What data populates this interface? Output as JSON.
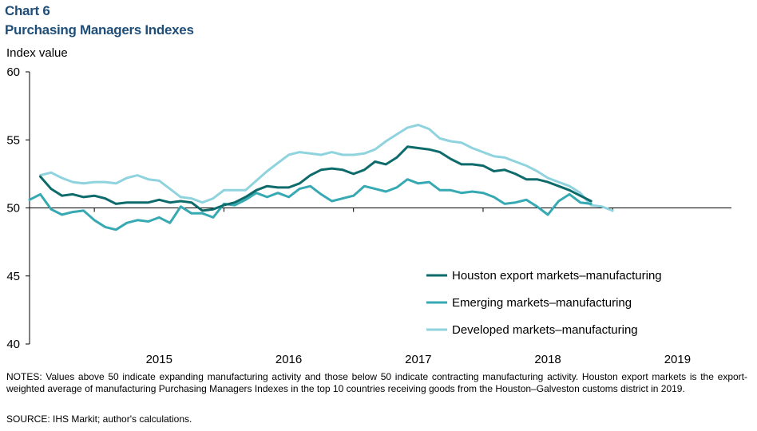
{
  "header": {
    "chart_label": "Chart 6",
    "title": "Purchasing Managers Indexes",
    "y_unit": "Index value"
  },
  "notes": "NOTES: Values above 50 indicate expanding manufacturing activity and those below 50 indicate contracting manufacturing activity. Houston export markets is the export-weighted average of manufacturing Purchasing Managers Indexes in the top 10 countries receiving goods from the Houston–Galveston customs district in 2019.",
  "source": "SOURCE: IHS Markit; author's calculations.",
  "chart_data": {
    "type": "line",
    "title": "Purchasing Managers Indexes",
    "ylabel": "Index value",
    "xlabel": "",
    "ylim": [
      40,
      60
    ],
    "yticks": [
      40,
      45,
      50,
      55,
      60
    ],
    "xlim": [
      "2014-07",
      "2019-12"
    ],
    "x_tick_labels": [
      "2015",
      "2016",
      "2017",
      "2018",
      "2019"
    ],
    "x_label_dates": [
      "2015-07",
      "2016-07",
      "2017-07",
      "2018-07",
      "2019-07"
    ],
    "x_boundary_dates": [
      "2015-01",
      "2016-01",
      "2017-01",
      "2018-01",
      "2019-01",
      "2020-01"
    ],
    "baseline_y": 50,
    "grid": false,
    "legend_position": "bottom-right",
    "series": [
      {
        "name": "Houston export markets–manufacturing",
        "color": "#0e6b6b",
        "x": [
          "2014-08",
          "2014-09",
          "2014-10",
          "2014-11",
          "2014-12",
          "2015-01",
          "2015-02",
          "2015-03",
          "2015-04",
          "2015-05",
          "2015-06",
          "2015-07",
          "2015-08",
          "2015-09",
          "2015-10",
          "2015-11",
          "2015-12",
          "2016-01",
          "2016-02",
          "2016-03",
          "2016-04",
          "2016-05",
          "2016-06",
          "2016-07",
          "2016-08",
          "2016-09",
          "2016-10",
          "2016-11",
          "2016-12",
          "2017-01",
          "2017-02",
          "2017-03",
          "2017-04",
          "2017-05",
          "2017-06",
          "2017-07",
          "2017-08",
          "2017-09",
          "2017-10",
          "2017-11",
          "2017-12",
          "2018-01",
          "2018-02",
          "2018-03",
          "2018-04",
          "2018-05",
          "2018-06",
          "2018-07",
          "2018-08",
          "2018-09",
          "2018-10",
          "2018-11",
          "2018-12"
        ],
        "y": [
          52.3,
          51.4,
          50.9,
          51.0,
          50.8,
          50.9,
          50.7,
          50.3,
          50.4,
          50.4,
          50.4,
          50.6,
          50.4,
          50.5,
          50.4,
          49.8,
          49.9,
          50.2,
          50.4,
          50.8,
          51.3,
          51.6,
          51.5,
          51.5,
          51.8,
          52.4,
          52.8,
          52.9,
          52.8,
          52.5,
          52.8,
          53.4,
          53.2,
          53.7,
          54.5,
          54.4,
          54.3,
          54.1,
          53.6,
          53.2,
          53.2,
          53.1,
          52.7,
          52.8,
          52.5,
          52.1,
          52.1,
          51.9,
          51.6,
          51.3,
          50.9,
          50.5,
          null
        ]
      },
      {
        "name": "Emerging markets–manufacturing",
        "color": "#36a9b3",
        "x": [
          "2014-07",
          "2014-08",
          "2014-09",
          "2014-10",
          "2014-11",
          "2014-12",
          "2015-01",
          "2015-02",
          "2015-03",
          "2015-04",
          "2015-05",
          "2015-06",
          "2015-07",
          "2015-08",
          "2015-09",
          "2015-10",
          "2015-11",
          "2015-12",
          "2016-01",
          "2016-02",
          "2016-03",
          "2016-04",
          "2016-05",
          "2016-06",
          "2016-07",
          "2016-08",
          "2016-09",
          "2016-10",
          "2016-11",
          "2016-12",
          "2017-01",
          "2017-02",
          "2017-03",
          "2017-04",
          "2017-05",
          "2017-06",
          "2017-07",
          "2017-08",
          "2017-09",
          "2017-10",
          "2017-11",
          "2017-12",
          "2018-01",
          "2018-02",
          "2018-03",
          "2018-04",
          "2018-05",
          "2018-06",
          "2018-07",
          "2018-08",
          "2018-09",
          "2018-10",
          "2018-11",
          "2018-12"
        ],
        "y": [
          50.6,
          51.0,
          49.9,
          49.5,
          49.7,
          49.8,
          49.1,
          48.6,
          48.4,
          48.9,
          49.1,
          49.0,
          49.3,
          48.9,
          50.1,
          49.6,
          49.6,
          49.3,
          50.3,
          50.2,
          50.6,
          51.1,
          50.8,
          51.1,
          50.8,
          51.4,
          51.6,
          51.0,
          50.5,
          50.7,
          50.9,
          51.6,
          51.4,
          51.2,
          51.5,
          52.1,
          51.8,
          51.9,
          51.3,
          51.3,
          51.1,
          51.2,
          51.1,
          50.8,
          50.3,
          50.4,
          50.6,
          50.1,
          49.5,
          50.5,
          51.0,
          50.4,
          50.3,
          null
        ]
      },
      {
        "name": "Developed markets–manufacturing",
        "color": "#8fd3de",
        "x": [
          "2014-08",
          "2014-09",
          "2014-10",
          "2014-11",
          "2014-12",
          "2015-01",
          "2015-02",
          "2015-03",
          "2015-04",
          "2015-05",
          "2015-06",
          "2015-07",
          "2015-08",
          "2015-09",
          "2015-10",
          "2015-11",
          "2015-12",
          "2016-01",
          "2016-02",
          "2016-03",
          "2016-04",
          "2016-05",
          "2016-06",
          "2016-07",
          "2016-08",
          "2016-09",
          "2016-10",
          "2016-11",
          "2016-12",
          "2017-01",
          "2017-02",
          "2017-03",
          "2017-04",
          "2017-05",
          "2017-06",
          "2017-07",
          "2017-08",
          "2017-09",
          "2017-10",
          "2017-11",
          "2017-12",
          "2018-01",
          "2018-02",
          "2018-03",
          "2018-04",
          "2018-05",
          "2018-06",
          "2018-07",
          "2018-08",
          "2018-09",
          "2018-10",
          "2018-11",
          "2018-12",
          "2019-01"
        ],
        "y": [
          52.4,
          52.6,
          52.2,
          51.9,
          51.8,
          51.9,
          51.9,
          51.8,
          52.2,
          52.4,
          52.1,
          52.0,
          51.4,
          50.8,
          50.7,
          50.4,
          50.7,
          51.3,
          51.3,
          51.3,
          52.0,
          52.7,
          53.3,
          53.9,
          54.1,
          54.0,
          53.9,
          54.1,
          53.9,
          53.9,
          54.0,
          54.3,
          54.9,
          55.4,
          55.9,
          56.1,
          55.8,
          55.1,
          54.9,
          54.8,
          54.4,
          54.1,
          53.8,
          53.7,
          53.4,
          53.1,
          52.7,
          52.2,
          51.9,
          51.6,
          51.1,
          50.2,
          50.1,
          49.8
        ]
      }
    ]
  }
}
